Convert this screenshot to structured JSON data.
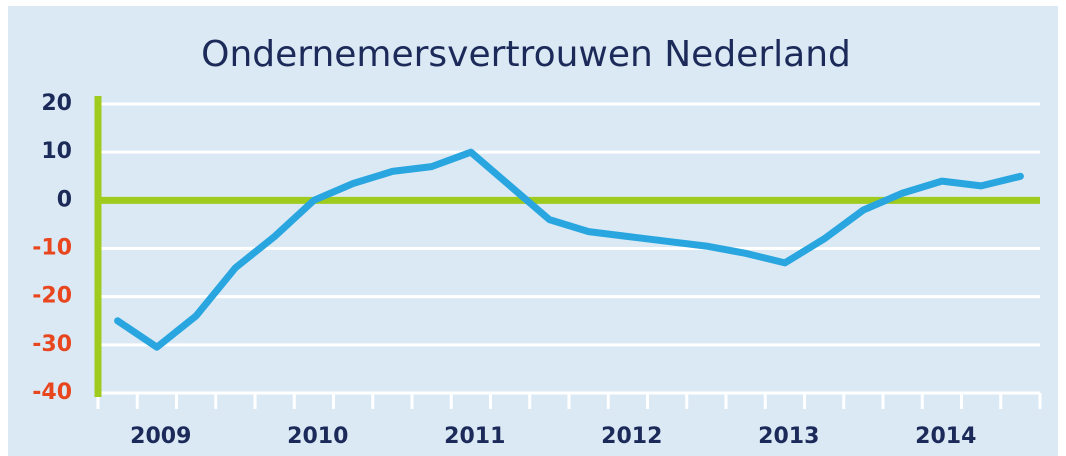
{
  "chart_data": {
    "type": "line",
    "title": "Ondernemersvertrouwen Nederland",
    "categories": [
      null,
      "2009",
      null,
      null,
      null,
      "2010",
      null,
      null,
      null,
      "2011",
      null,
      null,
      null,
      "2012",
      null,
      null,
      null,
      "2013",
      null,
      null,
      null,
      "2014",
      null,
      null
    ],
    "values": [
      -25,
      -30.5,
      -24,
      -14,
      -7.5,
      0,
      3.5,
      6,
      7,
      10,
      3,
      -4,
      -6.5,
      -7.5,
      -8.5,
      -9.5,
      -11,
      -13,
      -8,
      -2,
      1.5,
      4,
      3,
      5
    ],
    "color": "#29a6df",
    "ylim": [
      -40,
      20
    ],
    "yticks": [
      -40,
      -30,
      -20,
      -10,
      0,
      10,
      20
    ],
    "grid": true,
    "zero_line_color": "#9fca1e",
    "tick_label_colors": {
      "positive": "#1c2a5a",
      "negative": "#e8461e"
    }
  }
}
